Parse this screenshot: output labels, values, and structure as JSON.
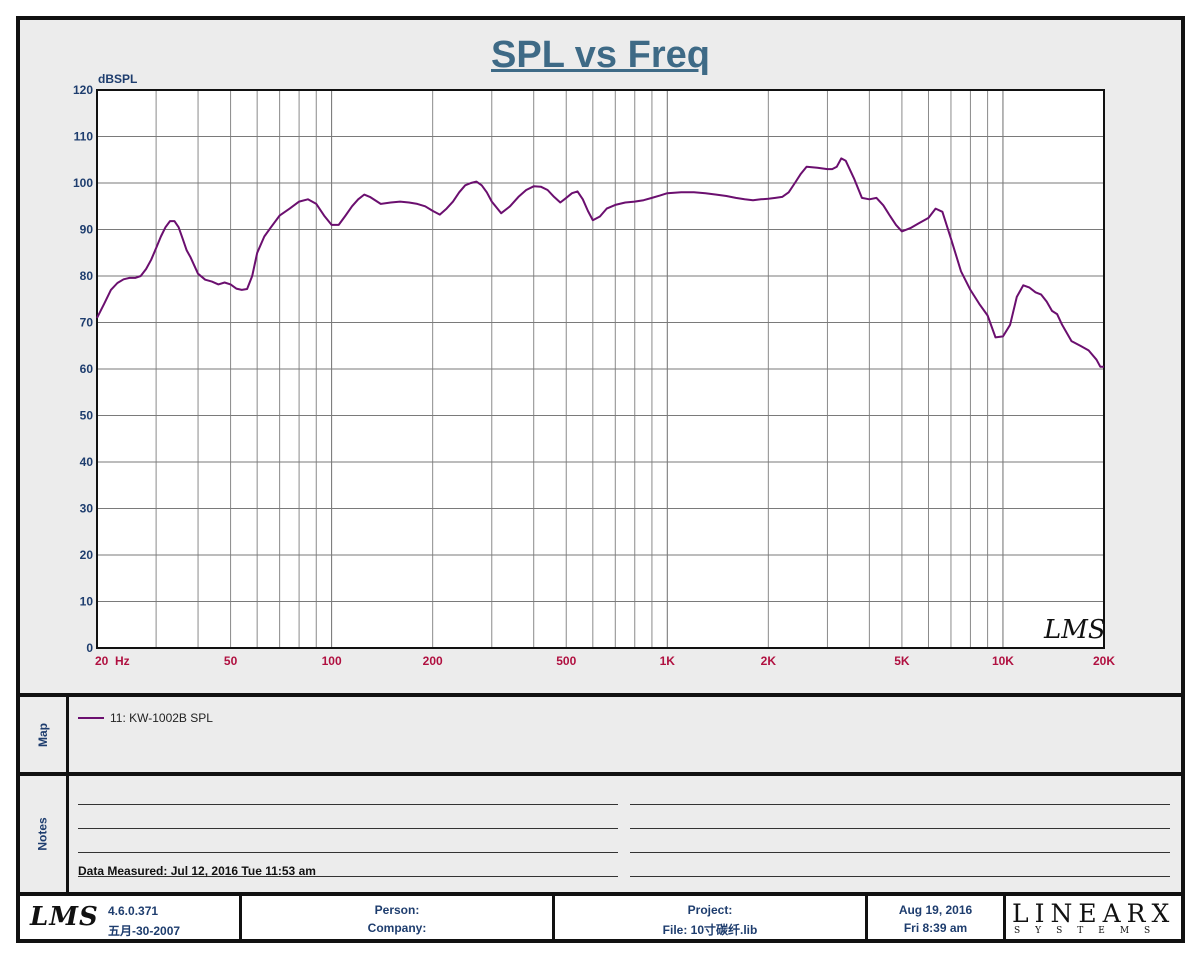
{
  "chart": {
    "title": "SPL vs Freq",
    "y_unit": "dBSPL",
    "watermark": "LMS"
  },
  "chart_data": {
    "type": "line",
    "title": "SPL vs Freq",
    "ylabel": "dBSPL",
    "xlabel": "",
    "x_scale": "log",
    "xlim": [
      20,
      20000
    ],
    "ylim": [
      0,
      120
    ],
    "grid": true,
    "x_tick_labels": [
      "20  Hz",
      "50",
      "100",
      "200",
      "500",
      "1K",
      "2K",
      "5K",
      "10K",
      "20K"
    ],
    "x_tick_values": [
      20,
      50,
      100,
      200,
      500,
      1000,
      2000,
      5000,
      10000,
      20000
    ],
    "y_ticks": [
      0,
      10,
      20,
      30,
      40,
      50,
      60,
      70,
      80,
      90,
      100,
      110,
      120
    ],
    "series": [
      {
        "name": "11: KW-1002B  SPL",
        "color": "#6b0f6f",
        "x": [
          20,
          21,
          22,
          23,
          24,
          25,
          26,
          27,
          28,
          29,
          30,
          31,
          32,
          33,
          34,
          35,
          36,
          37,
          38,
          40,
          42,
          44,
          46,
          48,
          50,
          52,
          54,
          56,
          58,
          60,
          63,
          66,
          70,
          75,
          80,
          85,
          90,
          95,
          100,
          105,
          110,
          115,
          120,
          125,
          130,
          140,
          150,
          160,
          170,
          180,
          190,
          200,
          210,
          220,
          230,
          240,
          250,
          260,
          270,
          280,
          290,
          300,
          320,
          340,
          360,
          380,
          400,
          420,
          440,
          460,
          480,
          500,
          520,
          540,
          560,
          580,
          600,
          630,
          660,
          700,
          750,
          800,
          850,
          900,
          950,
          1000,
          1100,
          1200,
          1300,
          1400,
          1500,
          1600,
          1700,
          1800,
          1900,
          2000,
          2100,
          2200,
          2300,
          2400,
          2500,
          2600,
          2800,
          3000,
          3100,
          3200,
          3300,
          3400,
          3600,
          3800,
          4000,
          4200,
          4400,
          4600,
          4800,
          5000,
          5300,
          5600,
          6000,
          6300,
          6600,
          7000,
          7500,
          8000,
          8500,
          9000,
          9500,
          10000,
          10500,
          11000,
          11500,
          12000,
          12500,
          13000,
          13500,
          14000,
          14500,
          15000,
          16000,
          17000,
          18000,
          19000,
          19500,
          20000
        ],
        "y": [
          71,
          74,
          77,
          78.5,
          79.3,
          79.6,
          79.6,
          80,
          81.5,
          83.5,
          86,
          88.5,
          90.5,
          91.8,
          91.8,
          90.5,
          88,
          85.5,
          84,
          80.5,
          79.2,
          78.8,
          78.2,
          78.6,
          78.2,
          77.3,
          77,
          77.2,
          80,
          85,
          88.5,
          90.5,
          93,
          94.5,
          96,
          96.5,
          95.5,
          93,
          91,
          91,
          93,
          95,
          96.5,
          97.5,
          97,
          95.5,
          95.8,
          96,
          95.8,
          95.5,
          95,
          94,
          93.2,
          94.5,
          96,
          98,
          99.5,
          100,
          100.3,
          99.5,
          98,
          96,
          93.5,
          95,
          97,
          98.5,
          99.3,
          99.2,
          98.5,
          97,
          95.8,
          96.8,
          97.8,
          98.2,
          96.5,
          94,
          92,
          92.8,
          94.5,
          95.3,
          95.8,
          96,
          96.3,
          96.8,
          97.3,
          97.8,
          98,
          98,
          97.8,
          97.5,
          97.2,
          96.8,
          96.5,
          96.3,
          96.5,
          96.6,
          96.8,
          97,
          98,
          100,
          102,
          103.5,
          103.3,
          103,
          103,
          103.5,
          105.3,
          104.8,
          101,
          96.8,
          96.5,
          96.8,
          95.2,
          93,
          91,
          89.6,
          90.3,
          91.3,
          92.5,
          94.5,
          93.8,
          88,
          81,
          77,
          74,
          71.5,
          66.8,
          67,
          69.5,
          75.5,
          78,
          77.5,
          76.5,
          76,
          74.5,
          72.5,
          71.8,
          69.5,
          66,
          65,
          64,
          62,
          60.5,
          60.5
        ]
      }
    ]
  },
  "map": {
    "label": "Map",
    "legend_entry": "11: KW-1002B  SPL",
    "legend_color": "#6b0f6f"
  },
  "notes": {
    "label": "Notes",
    "measured_label": "Data Measured:",
    "measured_value": " Jul 12, 2016  Tue 11:53 am"
  },
  "footer": {
    "logo": "LMS",
    "version": "4.6.0.371",
    "version_date": "五月-30-2007",
    "person_label": "Person:",
    "company_label": "Company:",
    "project_label": "Project:",
    "file_label": "File: 10寸碳纤.lib",
    "date": "Aug 19, 2016",
    "time": "Fri  8:39 am",
    "brand_big": "LINEARX",
    "brand_small": "SYSTEMS"
  },
  "colors": {
    "title": "#3e6a86",
    "y_tick": "#1e3d6e",
    "x_tick": "#b01040",
    "curve": "#6b0f6f",
    "panel_bg": "#ececec"
  }
}
